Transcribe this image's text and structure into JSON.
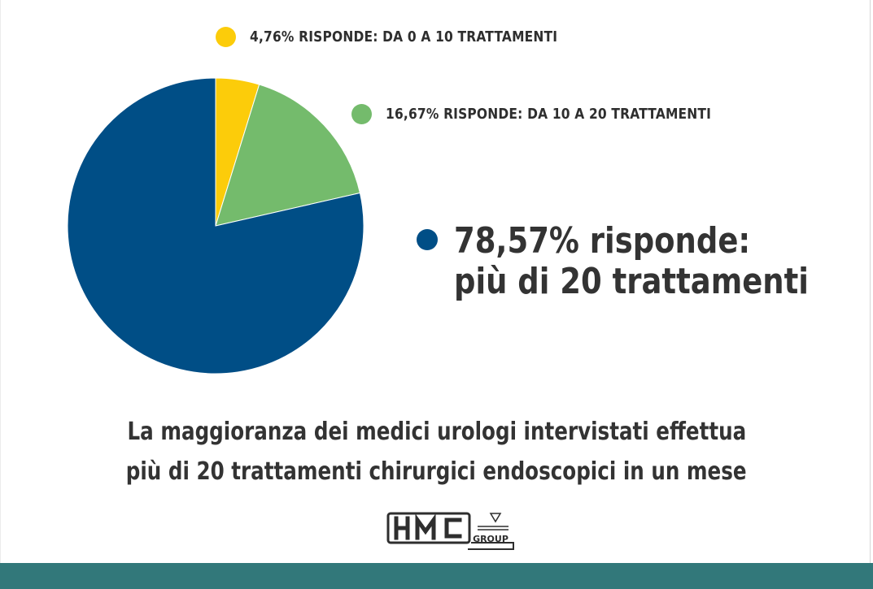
{
  "chart_data": {
    "type": "pie",
    "slices": [
      {
        "value": 4.76,
        "label": "4,76% RISPONDE: DA 0 A 10 TRATTAMENTI",
        "color": "#fccc0a"
      },
      {
        "value": 16.67,
        "label": "16,67% RISPONDE: DA 10 A 20 TRATTAMENTI",
        "color": "#74bb6c"
      },
      {
        "value": 78.57,
        "label_line1": "78,57% risponde:",
        "label_line2": "più di 20 trattamenti",
        "color": "#004e86"
      }
    ]
  },
  "caption": {
    "line1": "La maggioranza dei medici urologi intervistati effettua",
    "line2": "più di 20 trattamenti chirurgici endoscopici in un mese"
  },
  "logo": {
    "mark": "HMC",
    "sub": "GROUP"
  },
  "colors": {
    "footer_bar": "#32787a",
    "text": "#333333"
  }
}
